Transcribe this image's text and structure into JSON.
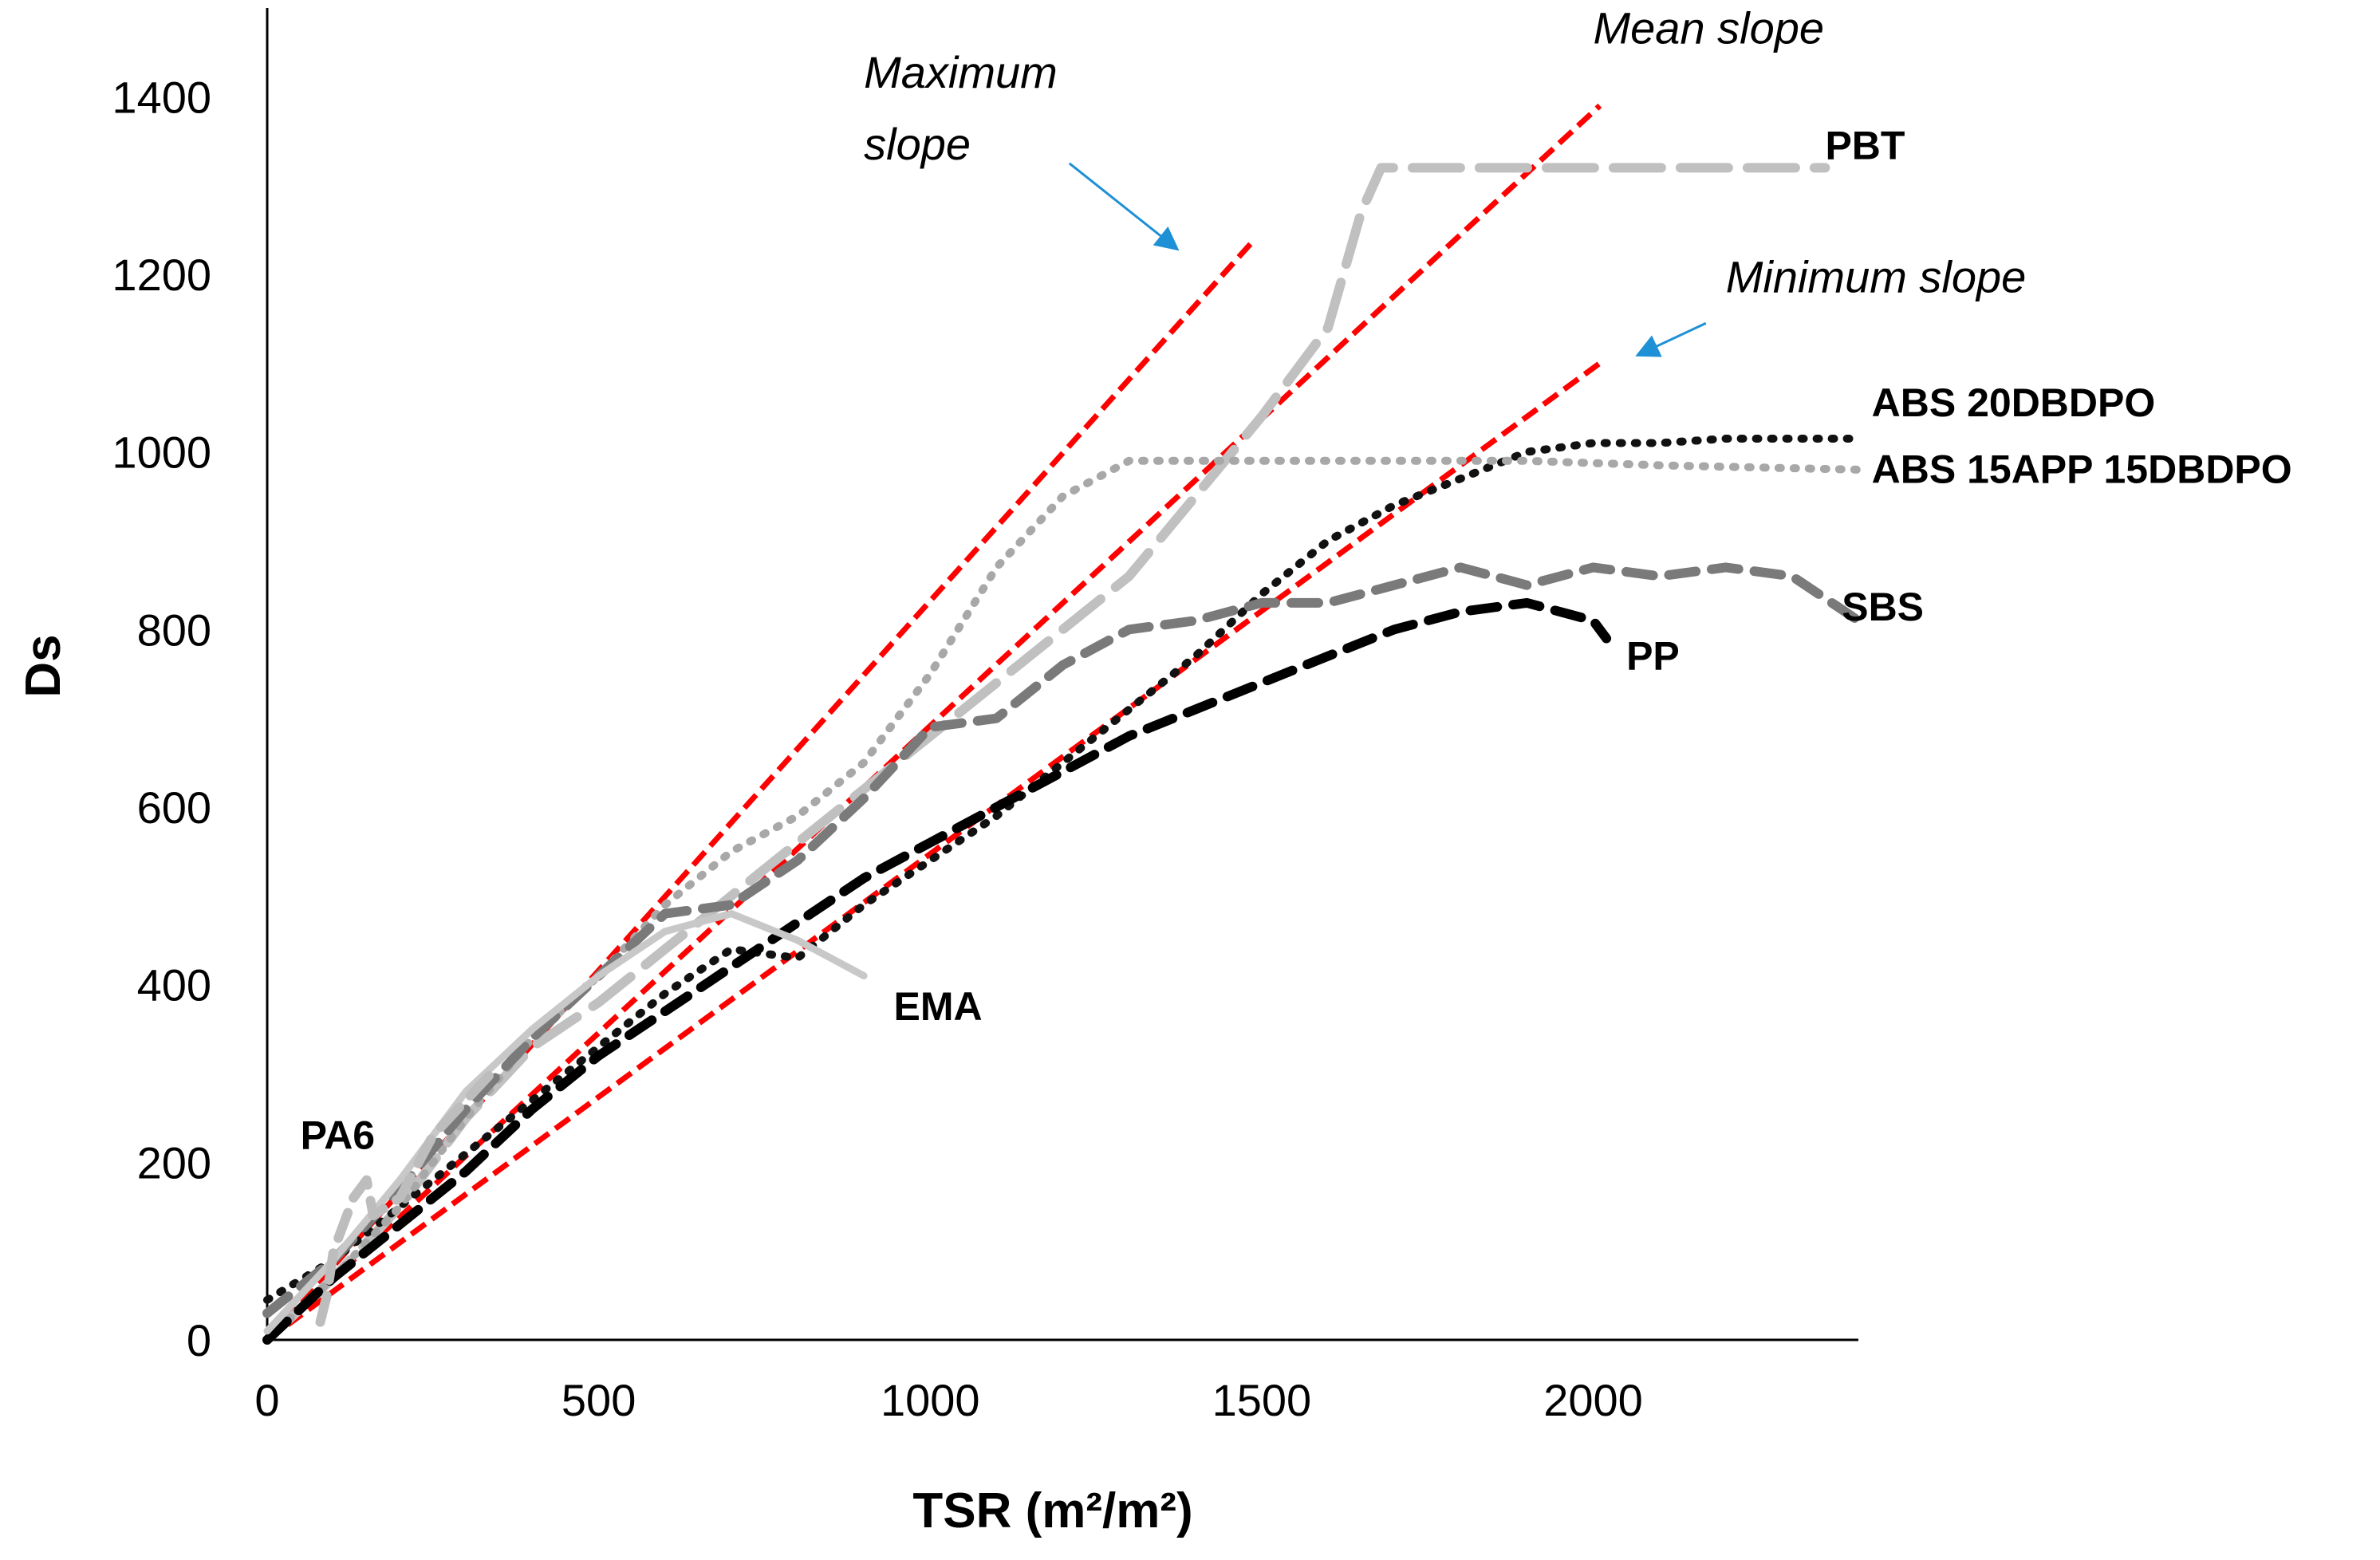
{
  "chart_data": {
    "type": "line",
    "title": "",
    "xlabel": "TSR (m²/m²)",
    "ylabel": "Ds",
    "xlim": [
      0,
      2400
    ],
    "ylim": [
      0,
      1500
    ],
    "x_ticks": [
      "0",
      "500",
      "1000",
      "1500",
      "2000"
    ],
    "x_tick_values": [
      0,
      500,
      1000,
      1500,
      2000
    ],
    "y_ticks": [
      "0",
      "200",
      "400",
      "600",
      "800",
      "1000",
      "1200",
      "1400"
    ],
    "y_tick_values": [
      0,
      200,
      400,
      600,
      800,
      1000,
      1200,
      1400
    ],
    "grid": false,
    "legend": "none",
    "series": [
      {
        "name": "PBT",
        "color": "#c0c0c0",
        "style": "long-dash",
        "points": [
          [
            0,
            0
          ],
          [
            100,
            70
          ],
          [
            200,
            150
          ],
          [
            300,
            250
          ],
          [
            400,
            330
          ],
          [
            500,
            380
          ],
          [
            600,
            440
          ],
          [
            700,
            500
          ],
          [
            800,
            560
          ],
          [
            900,
            620
          ],
          [
            1000,
            680
          ],
          [
            1100,
            740
          ],
          [
            1200,
            800
          ],
          [
            1300,
            860
          ],
          [
            1400,
            950
          ],
          [
            1500,
            1040
          ],
          [
            1600,
            1140
          ],
          [
            1650,
            1270
          ],
          [
            1680,
            1320
          ],
          [
            1750,
            1320
          ],
          [
            1900,
            1320
          ],
          [
            2100,
            1320
          ],
          [
            2350,
            1320
          ]
        ],
        "label_at": [
          2350,
          1330
        ]
      },
      {
        "name": "ABS 20DBDPO",
        "color": "#111111",
        "style": "dotted",
        "points": [
          [
            0,
            45
          ],
          [
            100,
            90
          ],
          [
            200,
            150
          ],
          [
            300,
            210
          ],
          [
            400,
            270
          ],
          [
            500,
            330
          ],
          [
            600,
            390
          ],
          [
            700,
            440
          ],
          [
            800,
            430
          ],
          [
            900,
            490
          ],
          [
            1000,
            540
          ],
          [
            1100,
            590
          ],
          [
            1200,
            650
          ],
          [
            1300,
            710
          ],
          [
            1400,
            770
          ],
          [
            1500,
            840
          ],
          [
            1600,
            900
          ],
          [
            1700,
            940
          ],
          [
            1800,
            970
          ],
          [
            1900,
            1000
          ],
          [
            2000,
            1010
          ],
          [
            2100,
            1010
          ],
          [
            2200,
            1015
          ],
          [
            2400,
            1015
          ]
        ],
        "label_at": [
          2420,
          1040
        ]
      },
      {
        "name": "ABS 15APP 15DBDPO",
        "color": "#a8a8a8",
        "style": "dotted",
        "points": [
          [
            0,
            0
          ],
          [
            100,
            70
          ],
          [
            200,
            150
          ],
          [
            300,
            250
          ],
          [
            400,
            340
          ],
          [
            500,
            410
          ],
          [
            600,
            490
          ],
          [
            700,
            550
          ],
          [
            800,
            590
          ],
          [
            900,
            650
          ],
          [
            1000,
            750
          ],
          [
            1100,
            870
          ],
          [
            1200,
            950
          ],
          [
            1300,
            990
          ],
          [
            1400,
            990
          ],
          [
            1500,
            990
          ],
          [
            1700,
            990
          ],
          [
            1900,
            990
          ],
          [
            2100,
            985
          ],
          [
            2400,
            980
          ]
        ],
        "label_at": [
          2420,
          965
        ]
      },
      {
        "name": "SBS",
        "color": "#7a7a7a",
        "style": "dash",
        "points": [
          [
            0,
            30
          ],
          [
            100,
            90
          ],
          [
            200,
            170
          ],
          [
            300,
            260
          ],
          [
            400,
            340
          ],
          [
            500,
            410
          ],
          [
            600,
            480
          ],
          [
            700,
            490
          ],
          [
            800,
            540
          ],
          [
            900,
            610
          ],
          [
            1000,
            690
          ],
          [
            1100,
            700
          ],
          [
            1200,
            760
          ],
          [
            1300,
            800
          ],
          [
            1400,
            810
          ],
          [
            1500,
            830
          ],
          [
            1600,
            830
          ],
          [
            1700,
            850
          ],
          [
            1800,
            870
          ],
          [
            1900,
            850
          ],
          [
            2000,
            870
          ],
          [
            2100,
            860
          ],
          [
            2200,
            870
          ],
          [
            2300,
            860
          ],
          [
            2400,
            810
          ]
        ],
        "label_at": [
          2375,
          810
        ]
      },
      {
        "name": "PP",
        "color": "#000000",
        "style": "dash",
        "points": [
          [
            0,
            0
          ],
          [
            100,
            70
          ],
          [
            200,
            130
          ],
          [
            300,
            190
          ],
          [
            400,
            260
          ],
          [
            500,
            320
          ],
          [
            600,
            370
          ],
          [
            700,
            420
          ],
          [
            800,
            470
          ],
          [
            900,
            520
          ],
          [
            1000,
            560
          ],
          [
            1100,
            600
          ],
          [
            1200,
            640
          ],
          [
            1300,
            680
          ],
          [
            1400,
            710
          ],
          [
            1500,
            740
          ],
          [
            1600,
            770
          ],
          [
            1700,
            800
          ],
          [
            1800,
            820
          ],
          [
            1900,
            830
          ],
          [
            2000,
            810
          ],
          [
            2020,
            790
          ]
        ],
        "label_at": [
          2050,
          755
        ]
      },
      {
        "name": "EMA",
        "color": "#c8c8c8",
        "style": "solid",
        "points": [
          [
            0,
            10
          ],
          [
            100,
            90
          ],
          [
            200,
            180
          ],
          [
            300,
            280
          ],
          [
            400,
            350
          ],
          [
            500,
            410
          ],
          [
            600,
            460
          ],
          [
            700,
            480
          ],
          [
            800,
            450
          ],
          [
            900,
            410
          ]
        ],
        "label_at": [
          945,
          360
        ]
      },
      {
        "name": "PA6",
        "color": "#bdbdbd",
        "style": "dash",
        "points": [
          [
            80,
            20
          ],
          [
            90,
            50
          ],
          [
            100,
            100
          ],
          [
            130,
            160
          ],
          [
            150,
            180
          ],
          [
            160,
            140
          ],
          [
            200,
            160
          ],
          [
            250,
            230
          ],
          [
            300,
            270
          ],
          [
            350,
            310
          ]
        ],
        "label_at": [
          50,
          215
        ]
      }
    ],
    "reference_lines": [
      {
        "name": "Maximum slope",
        "color": "#ff0000",
        "from": [
          0,
          0
        ],
        "to": [
          1490,
          1240
        ]
      },
      {
        "name": "Mean slope",
        "color": "#ff0000",
        "from": [
          0,
          0
        ],
        "to": [
          2010,
          1390
        ]
      },
      {
        "name": "Minimum slope",
        "color": "#ff0000",
        "from": [
          0,
          0
        ],
        "to": [
          2010,
          1100
        ]
      }
    ],
    "annotations": [
      {
        "lines": [
          "Maximum",
          "slope"
        ],
        "text_at": [
          900,
          1410
        ],
        "arrow_from": [
          1210,
          1325
        ],
        "arrow_to": [
          1370,
          1230
        ]
      },
      {
        "lines": [
          "Mean slope"
        ],
        "text_at": [
          2000,
          1460
        ],
        "arrow_from": null,
        "arrow_to": null
      },
      {
        "lines": [
          "Minimum slope"
        ],
        "text_at": [
          2200,
          1180
        ],
        "arrow_from": [
          2170,
          1145
        ],
        "arrow_to": [
          2070,
          1110
        ]
      }
    ]
  }
}
